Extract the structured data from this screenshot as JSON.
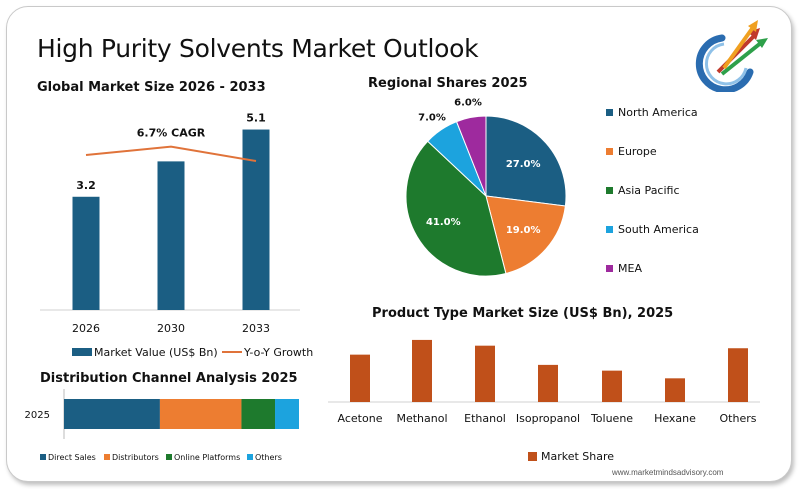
{
  "page": {
    "title": "High Purity Solvents Market Outlook",
    "footer": "www.marketmindsadvisory.com"
  },
  "chart_data": [
    {
      "type": "bar",
      "title": "Global Market Size 2026 - 2033",
      "categories": [
        "2026",
        "2030",
        "2033"
      ],
      "series": [
        {
          "name": "Market Value (US$ Bn)",
          "values": [
            3.2,
            4.2,
            5.1
          ],
          "data_labels": [
            "3.2",
            "",
            "5.1"
          ],
          "color": "#1b5e83"
        },
        {
          "name": "Y-o-Y Growth",
          "type": "line",
          "values": [
            6.7,
            7.4,
            6.2
          ],
          "color": "#e0733a"
        }
      ],
      "annotations": [
        "6.7% CAGR"
      ],
      "ylim": [
        0,
        6.5
      ],
      "grid": false,
      "legend": "bottom"
    },
    {
      "type": "pie",
      "title": "Regional Shares 2025",
      "labels": [
        "North America",
        "Europe",
        "Asia Pacific",
        "South America",
        "MEA"
      ],
      "values": [
        27.0,
        19.0,
        41.0,
        7.0,
        6.0
      ],
      "data_labels": [
        "27.0%",
        "19.0%",
        "41.0%",
        "7.0%",
        "6.0%"
      ],
      "colors": [
        "#1b5e83",
        "#ed7d31",
        "#1e7a2d",
        "#1ca3de",
        "#9e2a9e"
      ],
      "legend": "right"
    },
    {
      "type": "bar",
      "title": "Distribution Channel Analysis 2025",
      "orientation": "horizontal-stacked",
      "categories": [
        "2025"
      ],
      "series": [
        {
          "name": "Direct Sales",
          "values": [
            40
          ],
          "color": "#1b5e83"
        },
        {
          "name": "Distributors",
          "values": [
            34
          ],
          "color": "#ed7d31"
        },
        {
          "name": "Online Platforms",
          "values": [
            14
          ],
          "color": "#1e7a2d"
        },
        {
          "name": "Others",
          "values": [
            10
          ],
          "color": "#1ca3de"
        }
      ],
      "legend": "bottom"
    },
    {
      "type": "bar",
      "title": "Product Type Market Size (US$ Bn), 2025",
      "categories": [
        "Acetone",
        "Methanol",
        "Ethanol",
        "Isopropanol",
        "Toluene",
        "Hexane",
        "Others"
      ],
      "series": [
        {
          "name": "Market Share",
          "values": [
            0.74,
            0.97,
            0.88,
            0.58,
            0.49,
            0.37,
            0.84
          ],
          "color": "#c0501a"
        }
      ],
      "ylim": [
        0,
        1.0
      ],
      "legend": "bottom"
    }
  ]
}
